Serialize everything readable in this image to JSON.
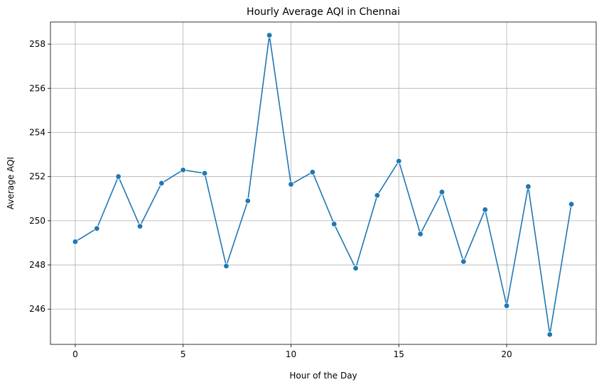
{
  "chart_data": {
    "type": "line",
    "title": "Hourly Average AQI in Chennai",
    "xlabel": "Hour of the Day",
    "ylabel": "Average AQI",
    "xlim": [
      -1.15,
      24.15
    ],
    "ylim": [
      244.4,
      259.0
    ],
    "xticks": [
      0,
      5,
      10,
      15,
      20
    ],
    "yticks": [
      246,
      248,
      250,
      252,
      254,
      256,
      258
    ],
    "grid": true,
    "color": "#1f77b4",
    "marker": "circle",
    "x": [
      0,
      1,
      2,
      3,
      4,
      5,
      6,
      7,
      8,
      9,
      10,
      11,
      12,
      13,
      14,
      15,
      16,
      17,
      18,
      19,
      20,
      21,
      22,
      23
    ],
    "y": [
      249.05,
      249.65,
      252.0,
      249.75,
      251.7,
      252.3,
      252.15,
      247.95,
      250.9,
      258.4,
      251.65,
      252.2,
      249.85,
      247.85,
      251.15,
      252.7,
      249.4,
      251.3,
      248.15,
      250.5,
      246.15,
      251.55,
      244.85,
      250.75
    ]
  }
}
